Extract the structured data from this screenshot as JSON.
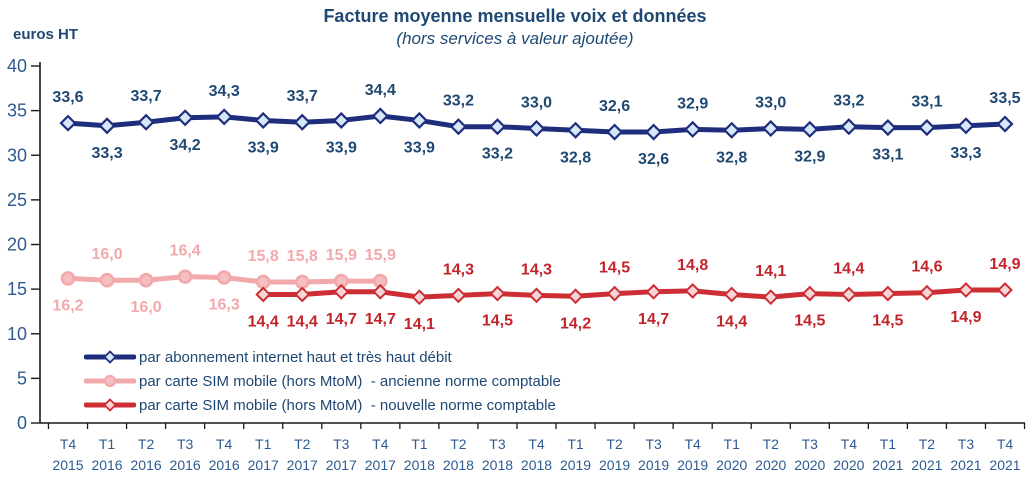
{
  "header": {
    "title": "Facture moyenne mensuelle voix et données",
    "subtitle": "(hors services à valeur ajoutée)",
    "unit_label": "euros HT"
  },
  "colors": {
    "title_text": "#1F4872",
    "axis_text": "#2E5B91",
    "axis_line": "#1A1A1A",
    "blue_series": "#1F2D7D",
    "pink_series": "#F2A9AB",
    "red_series": "#CC2E33"
  },
  "chart_data": {
    "type": "line",
    "title": "Facture moyenne mensuelle voix et données",
    "subtitle": "(hors services à valeur ajoutée)",
    "ylabel": "euros HT",
    "xlabel": "",
    "ylim": [
      0,
      40
    ],
    "yticks": [
      0,
      5,
      10,
      15,
      20,
      25,
      30,
      35,
      40
    ],
    "grid": false,
    "legend_position": "inside-bottom-left",
    "categories": [
      [
        "T4",
        "2015"
      ],
      [
        "T1",
        "2016"
      ],
      [
        "T2",
        "2016"
      ],
      [
        "T3",
        "2016"
      ],
      [
        "T4",
        "2016"
      ],
      [
        "T1",
        "2017"
      ],
      [
        "T2",
        "2017"
      ],
      [
        "T3",
        "2017"
      ],
      [
        "T4",
        "2017"
      ],
      [
        "T1",
        "2018"
      ],
      [
        "T2",
        "2018"
      ],
      [
        "T3",
        "2018"
      ],
      [
        "T4",
        "2018"
      ],
      [
        "T1",
        "2019"
      ],
      [
        "T2",
        "2019"
      ],
      [
        "T3",
        "2019"
      ],
      [
        "T4",
        "2019"
      ],
      [
        "T1",
        "2020"
      ],
      [
        "T2",
        "2020"
      ],
      [
        "T3",
        "2020"
      ],
      [
        "T4",
        "2020"
      ],
      [
        "T1",
        "2021"
      ],
      [
        "T2",
        "2021"
      ],
      [
        "T3",
        "2021"
      ],
      [
        "T4",
        "2021"
      ]
    ],
    "series": [
      {
        "name": "par abonnement internet haut et très haut débit",
        "color": "#1F2D7D",
        "marker": "diamond",
        "marker_fill": "#D5E8F7",
        "label_color": "#1F4872",
        "start_index": 0,
        "values": [
          33.6,
          33.3,
          33.7,
          34.2,
          34.3,
          33.9,
          33.7,
          33.9,
          34.4,
          33.9,
          33.2,
          33.2,
          33.0,
          32.8,
          32.6,
          32.6,
          32.9,
          32.8,
          33.0,
          32.9,
          33.2,
          33.1,
          33.1,
          33.3,
          33.5
        ],
        "labels": [
          "33,6",
          "33,3",
          "33,7",
          "34,2",
          "34,3",
          "33,9",
          "33,7",
          "33,9",
          "34,4",
          "33,9",
          "33,2",
          "33,2",
          "33,0",
          "32,8",
          "32,6",
          "32,6",
          "32,9",
          "32,8",
          "33,0",
          "32,9",
          "33,2",
          "33,1",
          "33,1",
          "33,3",
          "33,5"
        ],
        "label_side": [
          "a",
          "b",
          "a",
          "b",
          "a",
          "b",
          "a",
          "b",
          "a",
          "b",
          "a",
          "b",
          "a",
          "b",
          "a",
          "b",
          "a",
          "b",
          "a",
          "b",
          "a",
          "b",
          "a",
          "b",
          "a"
        ]
      },
      {
        "name": "par carte SIM mobile (hors MtoM)  - ancienne norme comptable",
        "color": "#F2A9AB",
        "marker": "circle",
        "marker_fill": "#F5BFC1",
        "label_color": "#F2A9AB",
        "start_index": 0,
        "values": [
          16.2,
          16.0,
          16.0,
          16.4,
          16.3,
          15.8,
          15.8,
          15.9,
          15.9
        ],
        "labels": [
          "16,2",
          "16,0",
          "16,0",
          "16,4",
          "16,3",
          "15,8",
          "15,8",
          "15,9",
          "15,9"
        ],
        "label_side": [
          "b",
          "a",
          "b",
          "a",
          "b",
          "a",
          "a",
          "a",
          "a"
        ]
      },
      {
        "name": "par carte SIM mobile (hors MtoM)  - nouvelle norme comptable",
        "color": "#CC2E33",
        "marker": "diamond",
        "marker_fill": "#F6D5D6",
        "label_color": "#C3242B",
        "start_index": 5,
        "values": [
          14.4,
          14.4,
          14.7,
          14.7,
          14.1,
          14.3,
          14.5,
          14.3,
          14.2,
          14.5,
          14.7,
          14.8,
          14.4,
          14.1,
          14.5,
          14.4,
          14.5,
          14.6,
          14.9,
          14.9
        ],
        "labels": [
          "14,4",
          "14,4",
          "14,7",
          "14,7",
          "14,1",
          "14,3",
          "14,5",
          "14,3",
          "14,2",
          "14,5",
          "14,7",
          "14,8",
          "14,4",
          "14,1",
          "14,5",
          "14,4",
          "14,5",
          "14,6",
          "14,9",
          "14,9"
        ],
        "label_side": [
          "b",
          "b",
          "b",
          "b",
          "b",
          "a",
          "b",
          "a",
          "b",
          "a",
          "b",
          "a",
          "b",
          "a",
          "b",
          "a",
          "b",
          "a",
          "b",
          "a"
        ]
      }
    ]
  }
}
